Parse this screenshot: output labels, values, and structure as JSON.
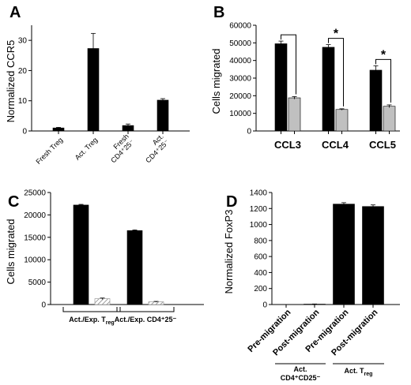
{
  "chart_data": [
    {
      "panel": "A",
      "type": "bar",
      "ylabel": "Normalized CCR5",
      "ylim": [
        0,
        35
      ],
      "yticks": [
        0,
        10,
        20,
        30
      ],
      "categories": [
        {
          "id": "fresh-treg",
          "lines": [
            "Fresh Treg"
          ]
        },
        {
          "id": "act-treg",
          "lines": [
            "Act. Treg"
          ]
        },
        {
          "id": "fresh-cd4-25",
          "lines": [
            "Fresh",
            "CD4⁺25⁻"
          ]
        },
        {
          "id": "act-cd4-25",
          "lines": [
            "Act.",
            "CD4⁺25⁻"
          ]
        }
      ],
      "values": [
        1.0,
        27.3,
        1.8,
        10.2
      ],
      "errors": [
        0.2,
        5.0,
        0.5,
        0.5
      ],
      "color": "#000000"
    },
    {
      "panel": "B",
      "type": "bar",
      "ylabel": "Cells migrated",
      "ylim": [
        0,
        60000
      ],
      "yticks": [
        0,
        10000,
        20000,
        30000,
        40000,
        50000,
        60000
      ],
      "categories": [
        "CCL3",
        "CCL4",
        "CCL5"
      ],
      "series": [
        {
          "values": [
            49500,
            47500,
            34500
          ],
          "errors": [
            1500,
            1500,
            2500
          ],
          "color": "#000000"
        },
        {
          "values": [
            18800,
            12200,
            14000
          ],
          "errors": [
            700,
            400,
            800
          ],
          "color": "#c0c0c0"
        }
      ],
      "annotations": [
        "",
        "*",
        "*"
      ]
    },
    {
      "panel": "C",
      "type": "bar",
      "ylabel": "Cells migrated",
      "ylim": [
        0,
        25000
      ],
      "yticks": [
        0,
        5000,
        10000,
        15000,
        20000,
        25000
      ],
      "categories": [
        {
          "id": "act-exp-treg",
          "text": "Act./Exp. T",
          "sub": "reg"
        },
        {
          "id": "act-exp-cd4-25",
          "text": "Act./Exp. CD4⁺25⁻",
          "sub": ""
        }
      ],
      "series": [
        {
          "values": [
            22200,
            16500
          ],
          "errors": [
            150,
            150
          ],
          "color": "#000000"
        },
        {
          "values": [
            1300,
            600
          ],
          "errors": [
            150,
            100
          ],
          "color": "hatched"
        }
      ]
    },
    {
      "panel": "D",
      "type": "bar",
      "ylabel": "Normalized FoxP3",
      "ylim": [
        0,
        1400
      ],
      "yticks": [
        0,
        200,
        400,
        600,
        800,
        1000,
        1200,
        1400
      ],
      "categories": [
        "Pre-migration",
        "Post-migration",
        "Pre-migration",
        "Post-migration"
      ],
      "values": [
        0,
        5,
        1255,
        1225
      ],
      "errors": [
        0,
        2,
        18,
        20
      ],
      "groups": [
        {
          "lines": [
            "Act.",
            "CD4⁺CD25⁻"
          ],
          "span": [
            0,
            1
          ]
        },
        {
          "text": "Act. T",
          "sub": "reg",
          "span": [
            2,
            3
          ]
        }
      ],
      "color": "#000000"
    }
  ]
}
